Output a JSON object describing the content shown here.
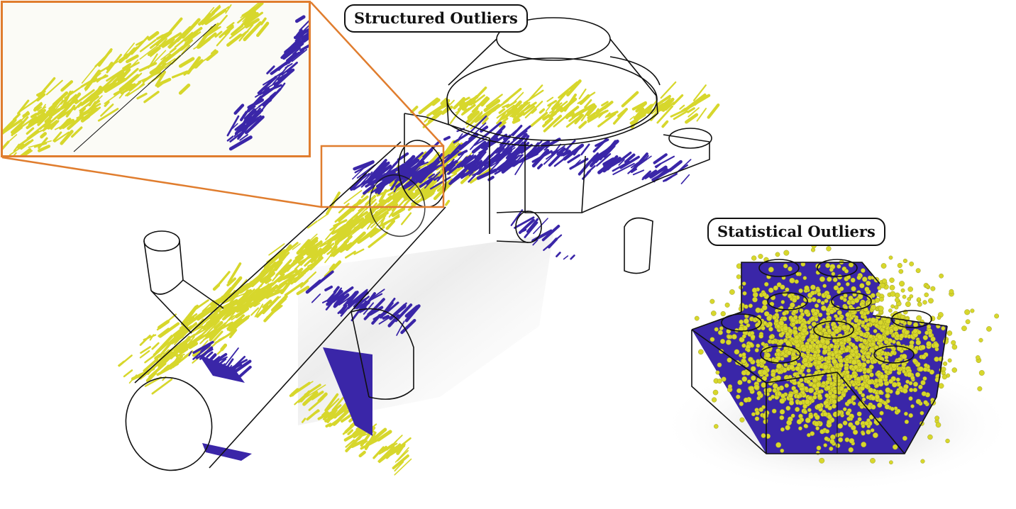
{
  "labels": {
    "structured": "Structured Outliers",
    "statistical": "Statistical Outliers"
  },
  "colors": {
    "inlier": "#3a26a8",
    "outlier": "#d7d72c",
    "outline": "#111111",
    "zoom_frame": "#e07d2e",
    "shadow": "#cfcfcf"
  }
}
